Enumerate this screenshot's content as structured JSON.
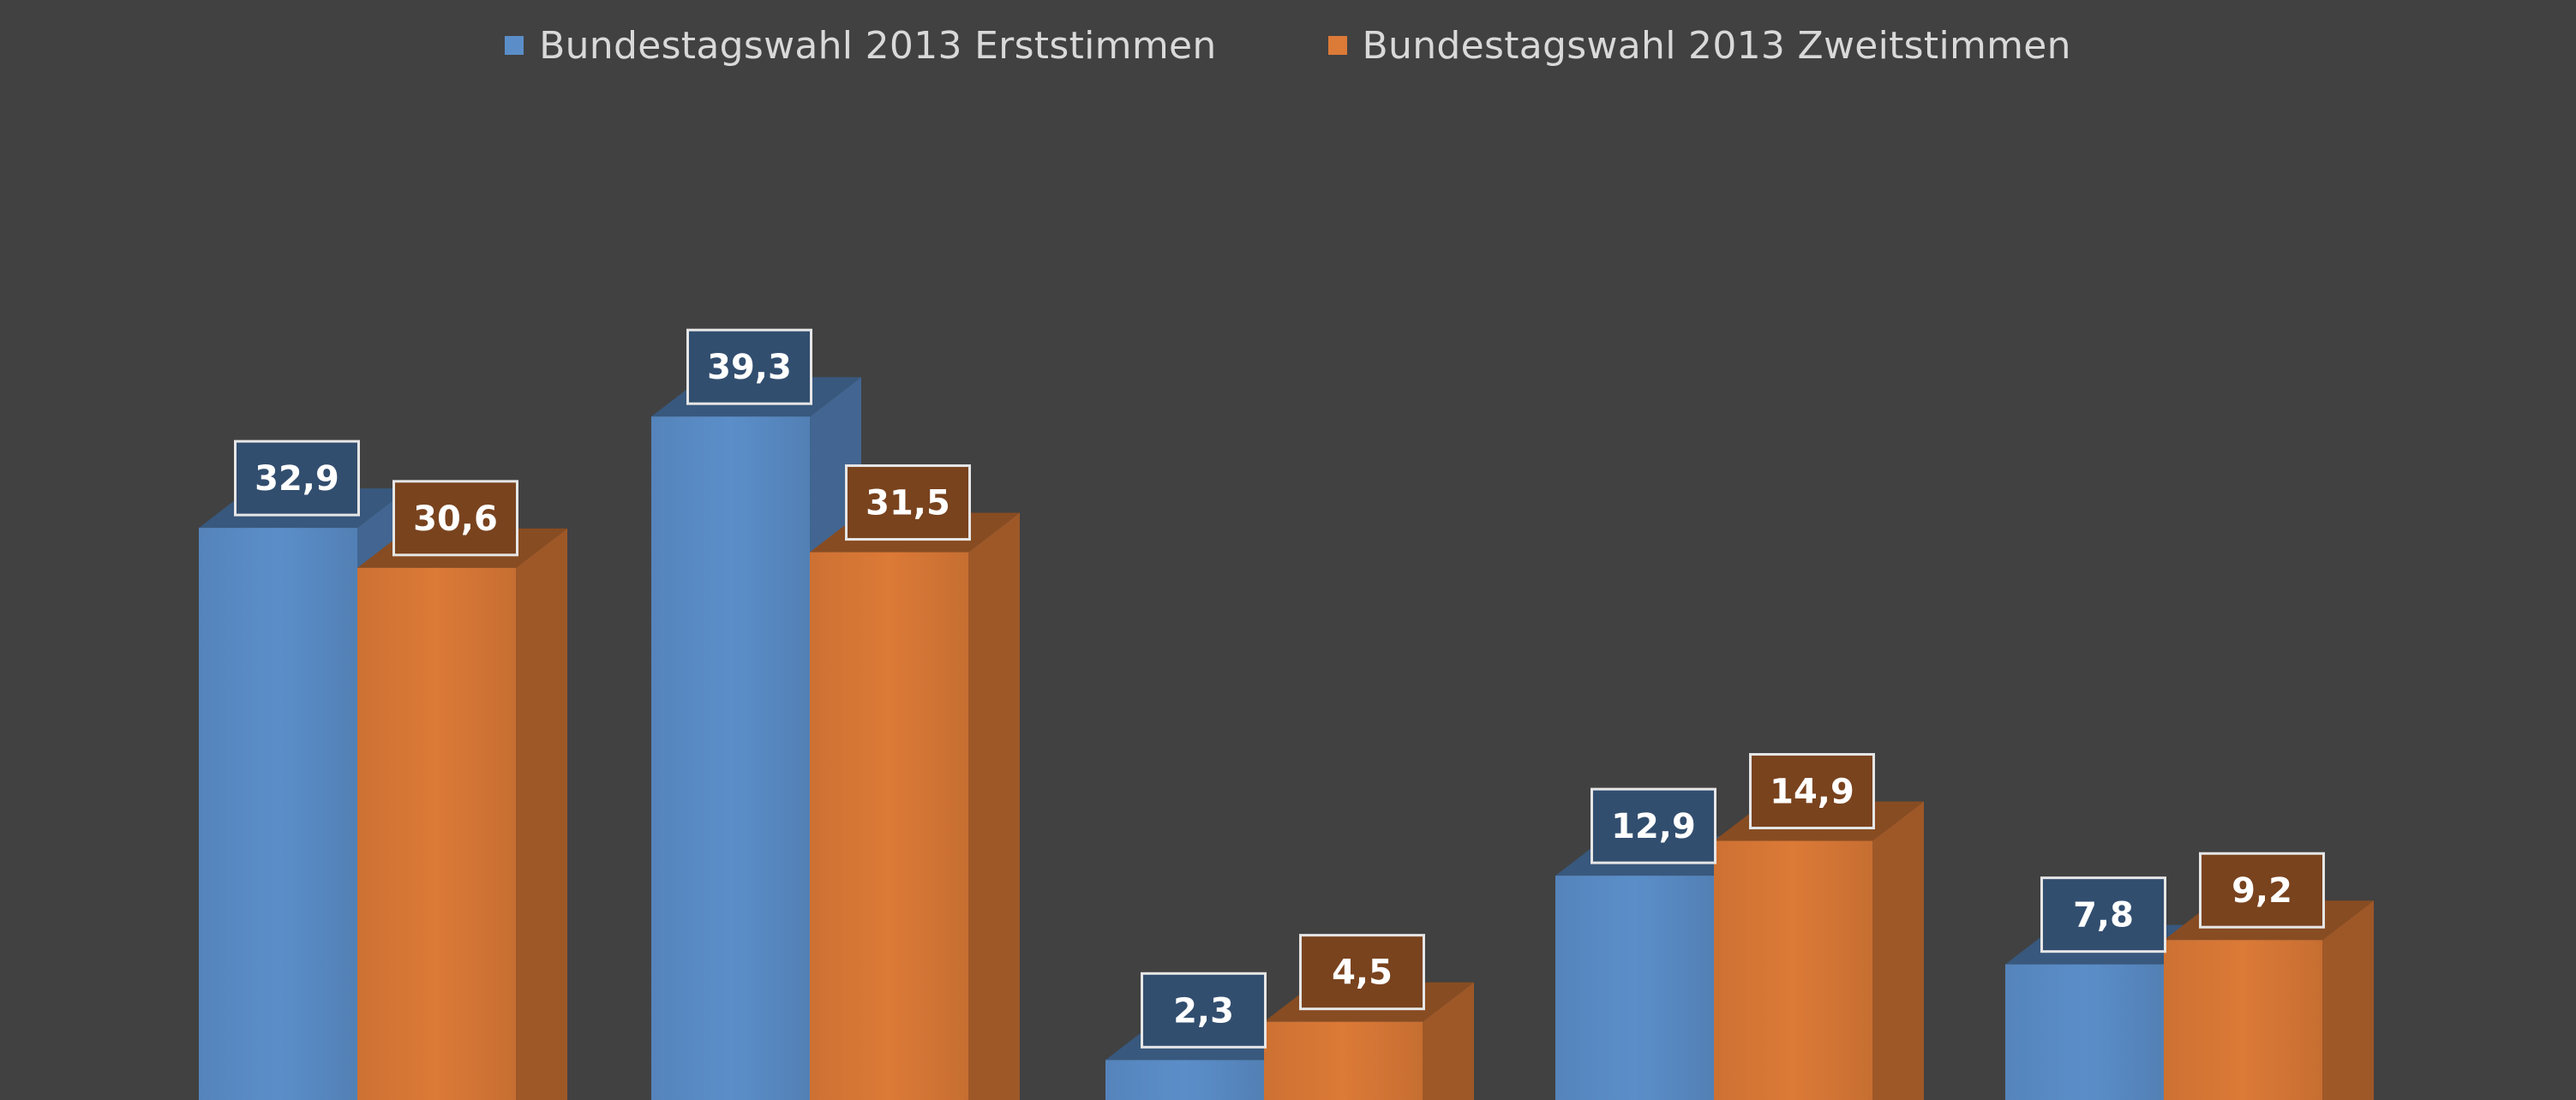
{
  "chart_data": {
    "type": "bar",
    "title": "",
    "xlabel": "",
    "ylabel": "",
    "ylim": [
      0,
      42
    ],
    "grid": false,
    "legend_position": "top-center",
    "categories": [
      "",
      "",
      "",
      "",
      ""
    ],
    "series": [
      {
        "name": "Bundestagswahl 2013 Erststimmen",
        "color": "#5b8ec9",
        "values": [
          32.9,
          39.3,
          2.3,
          12.9,
          7.8
        ],
        "labels": [
          "32,9",
          "39,3",
          "2,3",
          "12,9",
          "7,8"
        ]
      },
      {
        "name": "Bundestagswahl 2013 Zweitstimmen",
        "color": "#dc7a37",
        "values": [
          30.6,
          31.5,
          4.5,
          14.9,
          9.2
        ],
        "labels": [
          "30,6",
          "31,5",
          "4,5",
          "14,9",
          "9,2"
        ]
      }
    ]
  }
}
